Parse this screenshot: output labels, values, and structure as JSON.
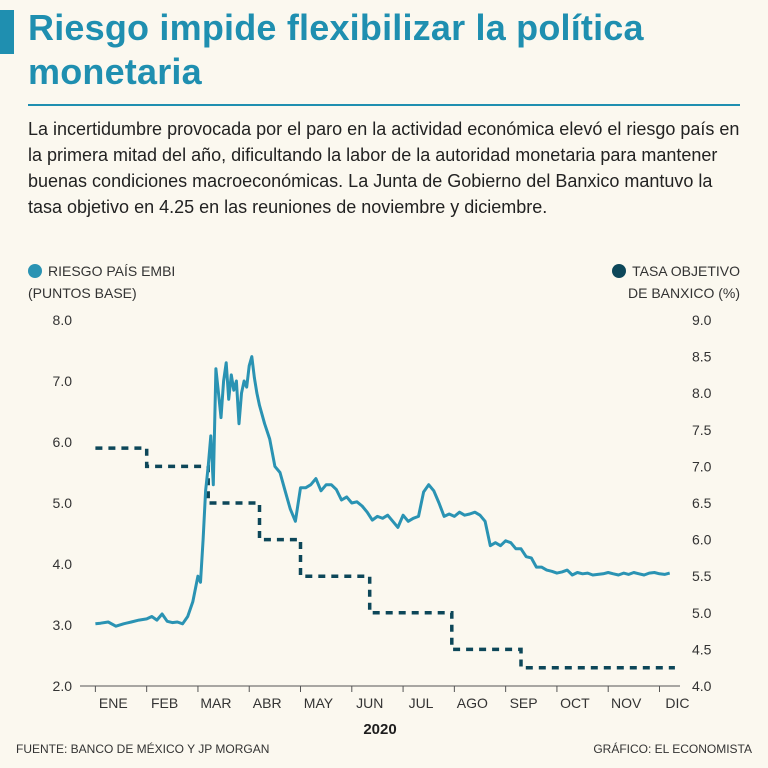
{
  "header": {
    "title": "Riesgo impide flexibilizar la política monetaria",
    "subtitle": "La incertidumbre provocada por el paro en la actividad económica elevó el riesgo país en la primera mitad del año, dificultando la labor de la autoridad monetaria para mantener buenas condiciones macroeconómicas. La Junta de Gobierno del Banxico mantuvo la tasa objetivo en 4.25 en las reuniones de noviembre y diciembre."
  },
  "legend": {
    "left_line1": "RIESGO PAÍS EMBI",
    "left_line2": "(PUNTOS BASE)",
    "right_line1": "TASA OBJETIVO",
    "right_line2": "DE BANXICO (%)"
  },
  "colors": {
    "accent": "#1f8fb0",
    "embi": "#2a93b3",
    "rate": "#0d4759"
  },
  "footer": {
    "source": "FUENTE: BANCO DE MÉXICO Y JP MORGAN",
    "credit": "GRÁFICO: EL ECONOMISTA"
  },
  "chart_data": {
    "type": "line",
    "title": "Riesgo impide flexibilizar la política monetaria",
    "xlabel": "2020",
    "categories": [
      "ENE",
      "FEB",
      "MAR",
      "ABR",
      "MAY",
      "JUN",
      "JUL",
      "AGO",
      "SEP",
      "OCT",
      "NOV",
      "DIC"
    ],
    "y_left": {
      "label": "RIESGO PAÍS EMBI (PUNTOS BASE)",
      "range": [
        2.0,
        8.0
      ],
      "ticks": [
        "2.0",
        "3.0",
        "4.0",
        "5.0",
        "6.0",
        "7.0",
        "8.0"
      ]
    },
    "y_right": {
      "label": "TASA OBJETIVO DE BANXICO (%)",
      "range": [
        4.0,
        9.0
      ],
      "ticks": [
        "4.0",
        "4.5",
        "5.0",
        "5.5",
        "6.0",
        "6.5",
        "7.0",
        "7.5",
        "8.0",
        "8.5",
        "9.0"
      ]
    },
    "series": [
      {
        "name": "RIESGO PAÍS EMBI",
        "axis": "left",
        "style": "solid",
        "x": [
          0,
          0.1,
          0.25,
          0.4,
          0.55,
          0.7,
          0.85,
          1.0,
          1.1,
          1.2,
          1.3,
          1.4,
          1.5,
          1.6,
          1.7,
          1.8,
          1.9,
          2.0,
          2.05,
          2.1,
          2.15,
          2.2,
          2.25,
          2.3,
          2.35,
          2.4,
          2.45,
          2.5,
          2.55,
          2.6,
          2.65,
          2.7,
          2.75,
          2.8,
          2.85,
          2.9,
          2.95,
          3.0,
          3.05,
          3.1,
          3.15,
          3.2,
          3.3,
          3.4,
          3.5,
          3.6,
          3.7,
          3.8,
          3.9,
          4.0,
          4.1,
          4.2,
          4.3,
          4.4,
          4.5,
          4.6,
          4.7,
          4.8,
          4.9,
          5.0,
          5.1,
          5.2,
          5.3,
          5.4,
          5.5,
          5.6,
          5.7,
          5.8,
          5.9,
          6.0,
          6.1,
          6.2,
          6.3,
          6.4,
          6.5,
          6.6,
          6.7,
          6.8,
          6.9,
          7.0,
          7.1,
          7.2,
          7.3,
          7.4,
          7.5,
          7.6,
          7.7,
          7.8,
          7.9,
          8.0,
          8.1,
          8.2,
          8.3,
          8.4,
          8.5,
          8.6,
          8.7,
          8.8,
          8.9,
          9.0,
          9.1,
          9.2,
          9.3,
          9.4,
          9.5,
          9.6,
          9.7,
          9.8,
          9.9,
          10.0,
          10.1,
          10.2,
          10.3,
          10.4,
          10.5,
          10.6,
          10.7,
          10.8,
          10.9,
          11.0,
          11.1,
          11.2
        ],
        "values": [
          3.02,
          3.03,
          3.05,
          2.98,
          3.02,
          3.05,
          3.08,
          3.1,
          3.14,
          3.08,
          3.18,
          3.06,
          3.04,
          3.05,
          3.02,
          3.14,
          3.38,
          3.8,
          3.7,
          4.4,
          5.2,
          5.6,
          6.1,
          5.3,
          7.2,
          6.8,
          6.4,
          7.0,
          7.3,
          6.7,
          7.1,
          6.85,
          7.0,
          6.3,
          6.8,
          7.0,
          6.9,
          7.25,
          7.4,
          7.05,
          6.8,
          6.6,
          6.3,
          6.05,
          5.6,
          5.5,
          5.2,
          4.9,
          4.7,
          5.25,
          5.25,
          5.3,
          5.4,
          5.2,
          5.3,
          5.3,
          5.22,
          5.05,
          5.1,
          5.0,
          5.02,
          4.95,
          4.85,
          4.72,
          4.78,
          4.75,
          4.8,
          4.7,
          4.6,
          4.8,
          4.7,
          4.75,
          4.78,
          5.18,
          5.3,
          5.2,
          5.0,
          4.78,
          4.82,
          4.78,
          4.85,
          4.8,
          4.82,
          4.85,
          4.8,
          4.7,
          4.3,
          4.35,
          4.3,
          4.38,
          4.35,
          4.25,
          4.25,
          4.12,
          4.1,
          3.95,
          3.95,
          3.9,
          3.88,
          3.85,
          3.87,
          3.9,
          3.82,
          3.86,
          3.84,
          3.85,
          3.82,
          3.83,
          3.84,
          3.86,
          3.84,
          3.82,
          3.85,
          3.83,
          3.86,
          3.84,
          3.82,
          3.85,
          3.86,
          3.84,
          3.83,
          3.85
        ],
        "note": "Daily EMBI series approximated from the plotted line, x in month index units (0 = ENE)."
      },
      {
        "name": "TASA OBJETIVO DE BANXICO",
        "axis": "right",
        "style": "dashed",
        "step_x": [
          0,
          1.0,
          1.0,
          2.2,
          2.2,
          3.2,
          3.2,
          4.0,
          4.0,
          5.35,
          5.35,
          6.95,
          6.95,
          8.3,
          8.3,
          11.3
        ],
        "step_values": [
          7.25,
          7.25,
          7.0,
          7.0,
          6.5,
          6.5,
          6.0,
          6.0,
          5.5,
          5.5,
          5.0,
          5.0,
          4.5,
          4.5,
          4.25,
          4.25
        ]
      }
    ]
  }
}
